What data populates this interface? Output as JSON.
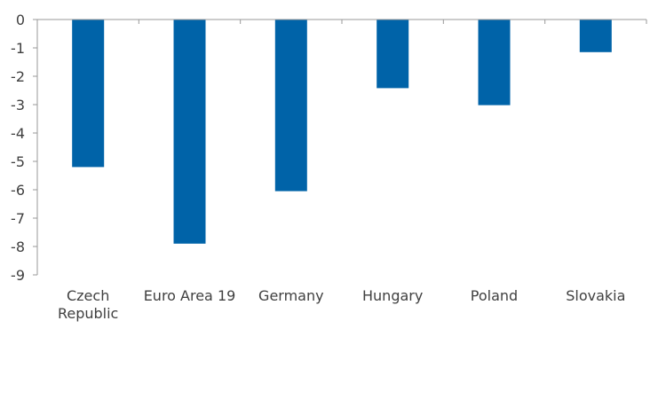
{
  "chart_data": {
    "type": "bar",
    "categories": [
      "Czech Republic",
      "Euro Area 19",
      "Germany",
      "Hungary",
      "Poland",
      "Slovakia"
    ],
    "category_lines": [
      [
        "Czech",
        "Republic"
      ],
      [
        "Euro Area 19"
      ],
      [
        "Germany"
      ],
      [
        "Hungary"
      ],
      [
        "Poland"
      ],
      [
        "Slovakia"
      ]
    ],
    "values": [
      -5.2,
      -7.9,
      -6.05,
      -2.42,
      -3.02,
      -1.15
    ],
    "title": "",
    "xlabel": "",
    "ylabel": "",
    "ylim": [
      -9,
      0
    ],
    "yticks": [
      0,
      -1,
      -2,
      -3,
      -4,
      -5,
      -6,
      -7,
      -8,
      -9
    ],
    "ytick_labels": [
      "0",
      "-1",
      "-2",
      "-3",
      "-4",
      "-5",
      "-6",
      "-7",
      "-8",
      "-9"
    ],
    "grid": false,
    "legend": "none",
    "bar_color": "#0063A8",
    "axis_color": "#999999"
  }
}
